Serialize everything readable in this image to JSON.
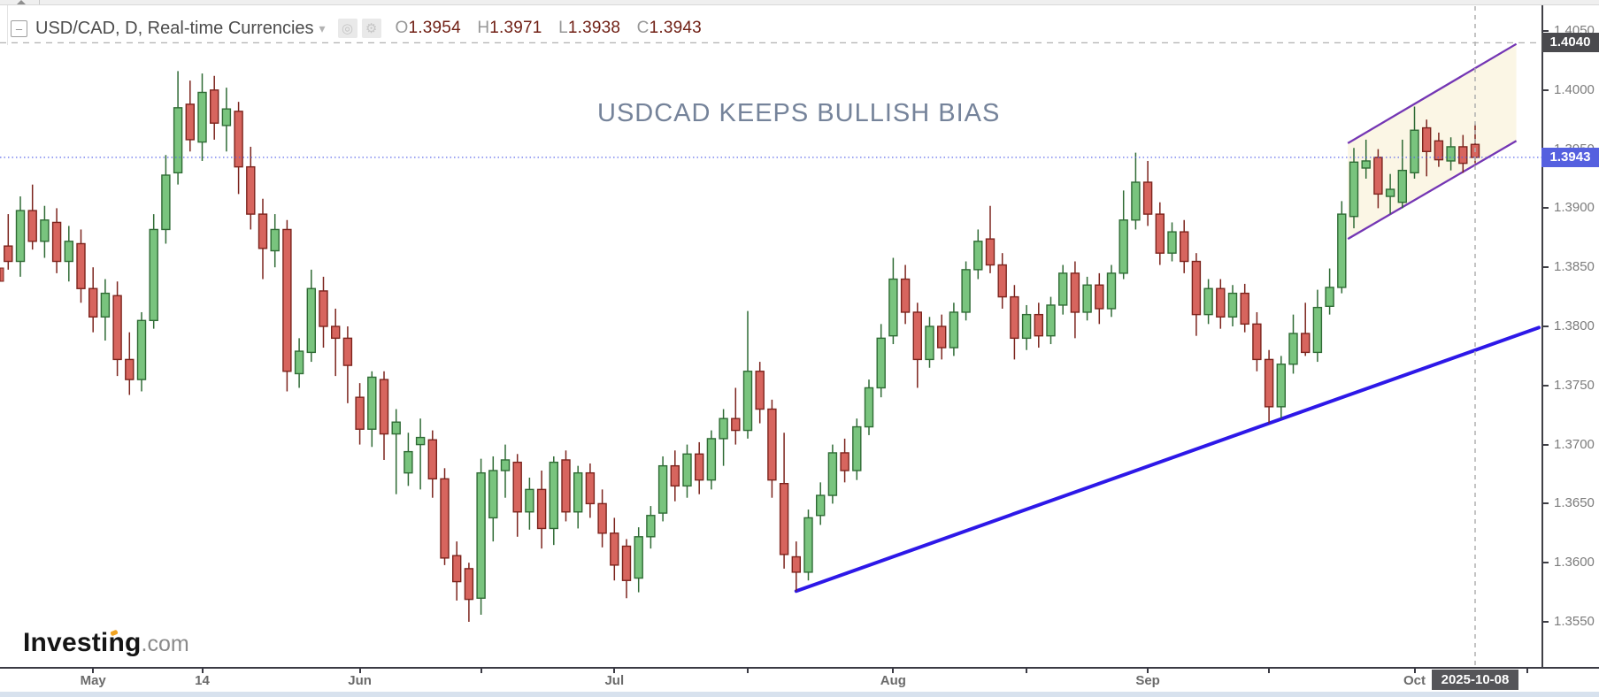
{
  "header": {
    "symbol_line": "USD/CAD, D, Real-time Currencies",
    "ohlc": [
      {
        "k": "O",
        "v": "1.3954"
      },
      {
        "k": "H",
        "v": "1.3971"
      },
      {
        "k": "L",
        "v": "1.3938"
      },
      {
        "k": "C",
        "v": "1.3943"
      }
    ],
    "icons": [
      "collapse-icon",
      "dropdown-caret-icon",
      "hollow-circle-icon",
      "gear-icon"
    ]
  },
  "watermark": "USDCAD KEEPS BULLISH BIAS",
  "logo": {
    "main": "Investing",
    "suffix": ".com",
    "accent_color": "#f0a321"
  },
  "colors": {
    "up_fill": "#79c47e",
    "up_stroke": "#2f6b35",
    "down_fill": "#d7655e",
    "down_stroke": "#7c241d",
    "trendline": "#2d18e8",
    "channel_line": "#7436b4",
    "channel_fill": "#faf4e0",
    "last_price_line": "#4f5ce8",
    "last_price_badge": "#5560df",
    "crosshair": "#b0b0b0",
    "crosshair_badge": "#4a4a4e",
    "watermark": "#75839a",
    "axis_text": "#7c7c7c"
  },
  "chart_data": {
    "type": "candlestick",
    "symbol": "USD/CAD",
    "interval": "D",
    "title": "USDCAD KEEPS BULLISH BIAS",
    "last_price_label": "1.3943",
    "last_price": 1.3943,
    "crosshair": {
      "price_label": "1.4040",
      "price": 1.404,
      "date_label": "2025-10-08"
    },
    "y_axis": {
      "min": 1.352,
      "max": 1.407,
      "grid": false,
      "ticks": [
        1.405,
        1.4,
        1.395,
        1.39,
        1.385,
        1.38,
        1.375,
        1.37,
        1.365,
        1.36,
        1.355
      ]
    },
    "x_axis": {
      "labeled_ticks": [
        {
          "label": "May",
          "index": 7
        },
        {
          "label": "14",
          "index": 16
        },
        {
          "label": "Jun",
          "index": 29
        },
        {
          "label": "Jul",
          "index": 50
        },
        {
          "label": "Aug",
          "index": 73
        },
        {
          "label": "Sep",
          "index": 94
        },
        {
          "label": "Oct",
          "index": 116
        }
      ],
      "minor_tick_indices": [
        39,
        61,
        84,
        104,
        125.3
      ]
    },
    "annotations": {
      "trendline": {
        "from_index": 65,
        "from_price": 1.3576,
        "to_price": 1.3799,
        "comment": "rising support line from 2025-07-22 low"
      },
      "channel": {
        "from_index": 110.5,
        "to_index": 124.4,
        "upper": {
          "p1": 1.3955,
          "p2": 1.4039
        },
        "lower": {
          "p1": 1.3874,
          "p2": 1.3957
        }
      }
    },
    "columns": [
      "date",
      "open",
      "high",
      "low",
      "close"
    ],
    "candles": [
      [
        "2025-04-22",
        1.3868,
        1.3895,
        1.3848,
        1.3855
      ],
      [
        "2025-04-23",
        1.3855,
        1.391,
        1.3842,
        1.3898
      ],
      [
        "2025-04-24",
        1.3898,
        1.392,
        1.3865,
        1.3872
      ],
      [
        "2025-04-25",
        1.3872,
        1.3902,
        1.3858,
        1.389
      ],
      [
        "2025-04-28",
        1.3888,
        1.39,
        1.3845,
        1.3855
      ],
      [
        "2025-04-29",
        1.3855,
        1.3885,
        1.3838,
        1.3872
      ],
      [
        "2025-04-30",
        1.387,
        1.3882,
        1.382,
        1.3832
      ],
      [
        "2025-05-01",
        1.3832,
        1.385,
        1.3795,
        1.3808
      ],
      [
        "2025-05-02",
        1.3808,
        1.384,
        1.3788,
        1.3828
      ],
      [
        "2025-05-05",
        1.3826,
        1.3838,
        1.3758,
        1.3772
      ],
      [
        "2025-05-06",
        1.3772,
        1.3795,
        1.3742,
        1.3755
      ],
      [
        "2025-05-07",
        1.3755,
        1.3812,
        1.3745,
        1.3805
      ],
      [
        "2025-05-08",
        1.3805,
        1.3895,
        1.3798,
        1.3882
      ],
      [
        "2025-05-09",
        1.3882,
        1.3945,
        1.387,
        1.3928
      ],
      [
        "2025-05-12",
        1.393,
        1.4016,
        1.392,
        1.3985
      ],
      [
        "2025-05-13",
        1.3988,
        1.4008,
        1.3948,
        1.3958
      ],
      [
        "2025-05-14",
        1.3956,
        1.4014,
        1.394,
        1.3998
      ],
      [
        "2025-05-15",
        1.4,
        1.4012,
        1.3958,
        1.3972
      ],
      [
        "2025-05-16",
        1.397,
        1.4002,
        1.3948,
        1.3984
      ],
      [
        "2025-05-19",
        1.3982,
        1.399,
        1.3912,
        1.3935
      ],
      [
        "2025-05-20",
        1.3935,
        1.3952,
        1.3882,
        1.3895
      ],
      [
        "2025-05-21",
        1.3895,
        1.3908,
        1.384,
        1.3866
      ],
      [
        "2025-05-22",
        1.3864,
        1.3895,
        1.385,
        1.3882
      ],
      [
        "2025-05-23",
        1.3882,
        1.389,
        1.3745,
        1.3762
      ],
      [
        "2025-05-26",
        1.376,
        1.379,
        1.3748,
        1.3779
      ],
      [
        "2025-05-27",
        1.3778,
        1.3848,
        1.377,
        1.3832
      ],
      [
        "2025-05-28",
        1.383,
        1.3842,
        1.3782,
        1.38
      ],
      [
        "2025-05-29",
        1.38,
        1.3815,
        1.3758,
        1.379
      ],
      [
        "2025-05-30",
        1.379,
        1.38,
        1.3735,
        1.3767
      ],
      [
        "2025-06-02",
        1.374,
        1.3752,
        1.37,
        1.3713
      ],
      [
        "2025-06-03",
        1.3713,
        1.3762,
        1.3698,
        1.3757
      ],
      [
        "2025-06-04",
        1.3755,
        1.3762,
        1.3687,
        1.3709
      ],
      [
        "2025-06-05",
        1.3709,
        1.373,
        1.3658,
        1.3719
      ],
      [
        "2025-06-06",
        1.3676,
        1.371,
        1.3665,
        1.3694
      ],
      [
        "2025-06-09",
        1.37,
        1.3722,
        1.3662,
        1.3706
      ],
      [
        "2025-06-10",
        1.3704,
        1.3712,
        1.3655,
        1.3671
      ],
      [
        "2025-06-11",
        1.3671,
        1.368,
        1.3598,
        1.3604
      ],
      [
        "2025-06-12",
        1.3606,
        1.3618,
        1.3568,
        1.3584
      ],
      [
        "2025-06-13",
        1.3595,
        1.36,
        1.355,
        1.3569
      ],
      [
        "2025-06-16",
        1.357,
        1.3688,
        1.3556,
        1.3676
      ],
      [
        "2025-06-17",
        1.3638,
        1.369,
        1.3618,
        1.3678
      ],
      [
        "2025-06-18",
        1.3678,
        1.37,
        1.3655,
        1.3687
      ],
      [
        "2025-06-19",
        1.3685,
        1.3692,
        1.3622,
        1.3643
      ],
      [
        "2025-06-20",
        1.3643,
        1.3672,
        1.3628,
        1.3662
      ],
      [
        "2025-06-23",
        1.3662,
        1.3678,
        1.3612,
        1.3629
      ],
      [
        "2025-06-24",
        1.3629,
        1.369,
        1.3615,
        1.3685
      ],
      [
        "2025-06-25",
        1.3687,
        1.3695,
        1.3635,
        1.3643
      ],
      [
        "2025-06-26",
        1.3643,
        1.3682,
        1.3629,
        1.3676
      ],
      [
        "2025-06-27",
        1.3676,
        1.3684,
        1.3638,
        1.365
      ],
      [
        "2025-06-30",
        1.365,
        1.3662,
        1.3613,
        1.3625
      ],
      [
        "2025-07-01",
        1.3625,
        1.3638,
        1.3585,
        1.3598
      ],
      [
        "2025-07-02",
        1.3614,
        1.362,
        1.357,
        1.3585
      ],
      [
        "2025-07-03",
        1.3587,
        1.363,
        1.3575,
        1.3622
      ],
      [
        "2025-07-04",
        1.3622,
        1.3648,
        1.3612,
        1.364
      ],
      [
        "2025-07-07",
        1.3642,
        1.369,
        1.3635,
        1.3682
      ],
      [
        "2025-07-08",
        1.3682,
        1.3695,
        1.3652,
        1.3665
      ],
      [
        "2025-07-09",
        1.3665,
        1.37,
        1.3655,
        1.3692
      ],
      [
        "2025-07-10",
        1.3692,
        1.3702,
        1.3658,
        1.367
      ],
      [
        "2025-07-11",
        1.367,
        1.3712,
        1.3662,
        1.3705
      ],
      [
        "2025-07-14",
        1.3705,
        1.373,
        1.3682,
        1.3722
      ],
      [
        "2025-07-15",
        1.3722,
        1.3748,
        1.37,
        1.3712
      ],
      [
        "2025-07-16",
        1.3712,
        1.3813,
        1.3705,
        1.3762
      ],
      [
        "2025-07-17",
        1.3762,
        1.377,
        1.3718,
        1.373
      ],
      [
        "2025-07-18",
        1.373,
        1.3738,
        1.3655,
        1.367
      ],
      [
        "2025-07-21",
        1.3667,
        1.371,
        1.3595,
        1.3607
      ],
      [
        "2025-07-22",
        1.3605,
        1.3618,
        1.3576,
        1.3592
      ],
      [
        "2025-07-23",
        1.3592,
        1.3645,
        1.3585,
        1.3638
      ],
      [
        "2025-07-24",
        1.364,
        1.3668,
        1.3632,
        1.3657
      ],
      [
        "2025-07-25",
        1.3657,
        1.37,
        1.365,
        1.3693
      ],
      [
        "2025-07-28",
        1.3693,
        1.3705,
        1.3668,
        1.3678
      ],
      [
        "2025-07-29",
        1.3678,
        1.3722,
        1.367,
        1.3715
      ],
      [
        "2025-07-30",
        1.3715,
        1.3755,
        1.3708,
        1.3748
      ],
      [
        "2025-07-31",
        1.3748,
        1.3802,
        1.374,
        1.379
      ],
      [
        "2025-08-01",
        1.3792,
        1.3858,
        1.3785,
        1.384
      ],
      [
        "2025-08-04",
        1.384,
        1.3852,
        1.3802,
        1.3812
      ],
      [
        "2025-08-05",
        1.3812,
        1.382,
        1.3748,
        1.3772
      ],
      [
        "2025-08-06",
        1.3772,
        1.3808,
        1.3765,
        1.38
      ],
      [
        "2025-08-07",
        1.38,
        1.381,
        1.3772,
        1.3782
      ],
      [
        "2025-08-08",
        1.3782,
        1.382,
        1.3775,
        1.3812
      ],
      [
        "2025-08-11",
        1.3812,
        1.3855,
        1.3805,
        1.3848
      ],
      [
        "2025-08-12",
        1.3848,
        1.3882,
        1.384,
        1.3872
      ],
      [
        "2025-08-13",
        1.3874,
        1.3902,
        1.3845,
        1.3852
      ],
      [
        "2025-08-14",
        1.3852,
        1.3862,
        1.3815,
        1.3825
      ],
      [
        "2025-08-15",
        1.3825,
        1.3835,
        1.3772,
        1.379
      ],
      [
        "2025-08-18",
        1.379,
        1.3818,
        1.378,
        1.381
      ],
      [
        "2025-08-19",
        1.381,
        1.382,
        1.3782,
        1.3792
      ],
      [
        "2025-08-20",
        1.3792,
        1.3825,
        1.3785,
        1.3818
      ],
      [
        "2025-08-21",
        1.3818,
        1.3852,
        1.381,
        1.3845
      ],
      [
        "2025-08-22",
        1.3845,
        1.3855,
        1.379,
        1.3812
      ],
      [
        "2025-08-25",
        1.3812,
        1.3842,
        1.3805,
        1.3835
      ],
      [
        "2025-08-26",
        1.3835,
        1.3845,
        1.3802,
        1.3815
      ],
      [
        "2025-08-27",
        1.3815,
        1.3852,
        1.3808,
        1.3845
      ],
      [
        "2025-08-28",
        1.3845,
        1.3915,
        1.384,
        1.389
      ],
      [
        "2025-08-29",
        1.389,
        1.3947,
        1.3882,
        1.3922
      ],
      [
        "2025-09-01",
        1.3922,
        1.394,
        1.3885,
        1.3895
      ],
      [
        "2025-09-02",
        1.3895,
        1.3905,
        1.3852,
        1.3862
      ],
      [
        "2025-09-03",
        1.3862,
        1.3888,
        1.3855,
        1.388
      ],
      [
        "2025-09-04",
        1.388,
        1.389,
        1.3845,
        1.3855
      ],
      [
        "2025-09-05",
        1.3855,
        1.3862,
        1.3792,
        1.381
      ],
      [
        "2025-09-08",
        1.381,
        1.384,
        1.3802,
        1.3832
      ],
      [
        "2025-09-09",
        1.3832,
        1.384,
        1.3798,
        1.3808
      ],
      [
        "2025-09-10",
        1.3808,
        1.3835,
        1.38,
        1.3828
      ],
      [
        "2025-09-11",
        1.3828,
        1.3836,
        1.3795,
        1.3802
      ],
      [
        "2025-09-12",
        1.3802,
        1.3812,
        1.3762,
        1.3772
      ],
      [
        "2025-09-15",
        1.3772,
        1.378,
        1.3718,
        1.3732
      ],
      [
        "2025-09-16",
        1.3732,
        1.3775,
        1.3722,
        1.3768
      ],
      [
        "2025-09-17",
        1.3768,
        1.381,
        1.376,
        1.3794
      ],
      [
        "2025-09-18",
        1.3794,
        1.382,
        1.3775,
        1.3778
      ],
      [
        "2025-09-19",
        1.3778,
        1.3831,
        1.377,
        1.3816
      ],
      [
        "2025-09-22",
        1.3817,
        1.3849,
        1.381,
        1.3833
      ],
      [
        "2025-09-23",
        1.3833,
        1.3906,
        1.3828,
        1.3895
      ],
      [
        "2025-09-24",
        1.3893,
        1.3951,
        1.3883,
        1.3939
      ],
      [
        "2025-09-25",
        1.3934,
        1.3958,
        1.3925,
        1.394
      ],
      [
        "2025-09-26",
        1.3943,
        1.395,
        1.39,
        1.3912
      ],
      [
        "2025-09-29",
        1.391,
        1.3929,
        1.3895,
        1.3916
      ],
      [
        "2025-09-30",
        1.3905,
        1.3958,
        1.39,
        1.3932
      ],
      [
        "2025-10-01",
        1.393,
        1.3986,
        1.3925,
        1.3966
      ],
      [
        "2025-10-02",
        1.3968,
        1.3975,
        1.3927,
        1.3948
      ],
      [
        "2025-10-03",
        1.3957,
        1.3964,
        1.3935,
        1.3941
      ],
      [
        "2025-10-06",
        1.394,
        1.396,
        1.3932,
        1.3952
      ],
      [
        "2025-10-07",
        1.3952,
        1.3962,
        1.393,
        1.3938
      ],
      [
        "2025-10-08",
        1.3954,
        1.3971,
        1.3938,
        1.3943
      ]
    ]
  }
}
